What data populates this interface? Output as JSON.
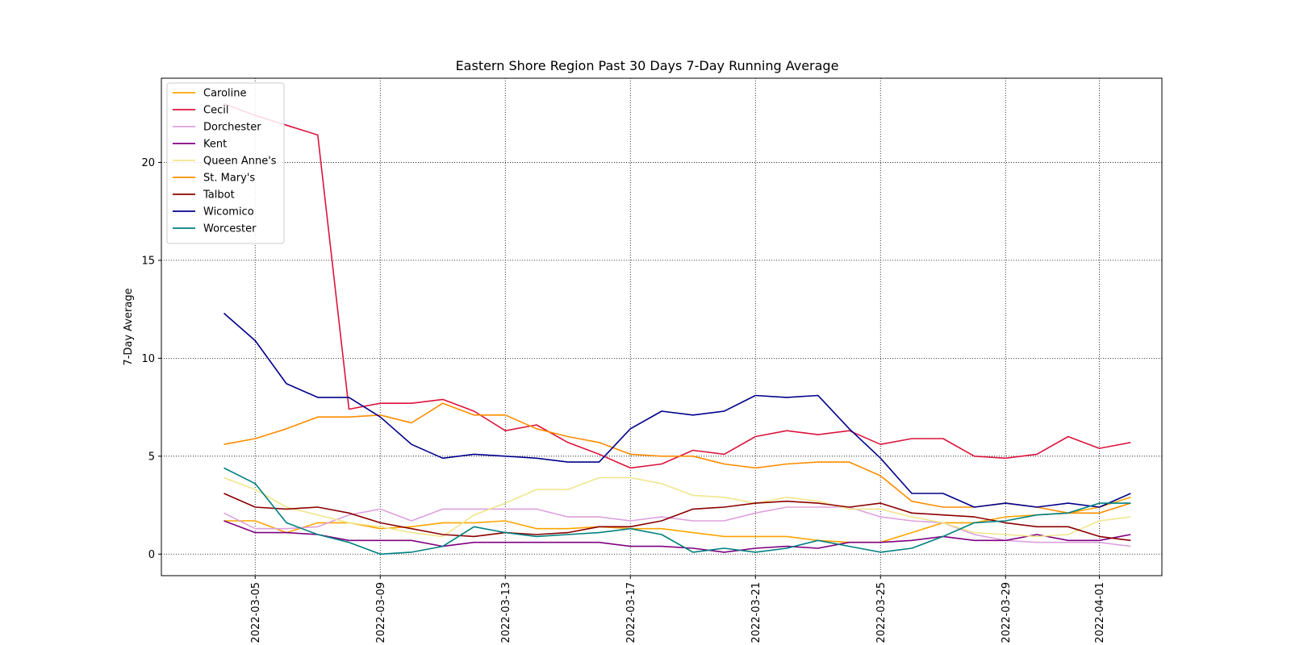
{
  "chart_data": {
    "type": "line",
    "title": "Eastern Shore Region Past 30 Days 7-Day Running Average",
    "xlabel": "",
    "ylabel": "7-Day Average",
    "xlim": [
      "2022-03-02",
      "2022-04-03"
    ],
    "ylim": [
      -1.1,
      24.3
    ],
    "yticks": [
      0,
      5,
      10,
      15,
      20
    ],
    "xticks": [
      "2022-03-05",
      "2022-03-09",
      "2022-03-13",
      "2022-03-17",
      "2022-03-21",
      "2022-03-25",
      "2022-03-29",
      "2022-04-01"
    ],
    "grid": true,
    "legend_position": "top-left",
    "x": [
      "2022-03-04",
      "2022-03-05",
      "2022-03-06",
      "2022-03-07",
      "2022-03-08",
      "2022-03-09",
      "2022-03-10",
      "2022-03-11",
      "2022-03-12",
      "2022-03-13",
      "2022-03-14",
      "2022-03-15",
      "2022-03-16",
      "2022-03-17",
      "2022-03-18",
      "2022-03-19",
      "2022-03-20",
      "2022-03-21",
      "2022-03-22",
      "2022-03-23",
      "2022-03-24",
      "2022-03-25",
      "2022-03-26",
      "2022-03-27",
      "2022-03-28",
      "2022-03-29",
      "2022-03-30",
      "2022-03-31",
      "2022-04-01",
      "2022-04-02"
    ],
    "series": [
      {
        "name": "Caroline",
        "color": "#ffa500",
        "values": [
          1.7,
          1.7,
          1.1,
          1.6,
          1.6,
          1.3,
          1.4,
          1.6,
          1.6,
          1.7,
          1.3,
          1.3,
          1.4,
          1.3,
          1.3,
          1.1,
          0.9,
          0.9,
          0.9,
          0.7,
          0.6,
          0.6,
          1.1,
          1.6,
          1.6,
          1.9,
          2.0,
          2.1,
          2.4,
          2.9
        ]
      },
      {
        "name": "Cecil",
        "color": "#dc143c",
        "values": [
          23.0,
          22.4,
          21.9,
          21.4,
          7.4,
          7.7,
          7.7,
          7.9,
          7.3,
          6.3,
          6.6,
          5.7,
          5.1,
          4.4,
          4.6,
          5.3,
          5.1,
          6.0,
          6.3,
          6.1,
          6.3,
          5.6,
          5.9,
          5.9,
          5.0,
          4.9,
          5.1,
          6.0,
          5.4,
          5.7
        ]
      },
      {
        "name": "Dorchester",
        "color": "#dda0dd",
        "values": [
          2.1,
          1.3,
          1.3,
          1.4,
          2.0,
          2.3,
          1.7,
          2.3,
          2.3,
          2.3,
          2.3,
          1.9,
          1.9,
          1.7,
          1.9,
          1.7,
          1.7,
          2.1,
          2.4,
          2.4,
          2.4,
          1.9,
          1.7,
          1.6,
          1.0,
          0.7,
          0.6,
          0.6,
          0.6,
          0.4
        ]
      },
      {
        "name": "Kent",
        "color": "#800080",
        "values": [
          1.7,
          1.1,
          1.1,
          1.0,
          0.7,
          0.7,
          0.7,
          0.4,
          0.6,
          0.6,
          0.6,
          0.6,
          0.6,
          0.4,
          0.4,
          0.3,
          0.1,
          0.3,
          0.4,
          0.3,
          0.6,
          0.6,
          0.7,
          0.9,
          0.7,
          0.7,
          1.0,
          0.7,
          0.7,
          1.0
        ]
      },
      {
        "name": "Queen Anne's",
        "color": "#f0e68c",
        "values": [
          3.9,
          3.3,
          2.4,
          2.0,
          1.6,
          1.4,
          1.1,
          0.9,
          2.0,
          2.6,
          3.3,
          3.3,
          3.9,
          3.9,
          3.6,
          3.0,
          2.9,
          2.6,
          2.9,
          2.7,
          2.3,
          2.3,
          1.9,
          1.6,
          1.1,
          1.0,
          0.9,
          1.0,
          1.7,
          1.9
        ]
      },
      {
        "name": "St. Mary's",
        "color": "#ff8c00",
        "values": [
          5.6,
          5.9,
          6.4,
          7.0,
          7.0,
          7.1,
          6.7,
          7.7,
          7.1,
          7.1,
          6.4,
          6.0,
          5.7,
          5.1,
          5.0,
          5.0,
          4.6,
          4.4,
          4.6,
          4.7,
          4.7,
          4.0,
          2.7,
          2.4,
          2.4,
          2.6,
          2.4,
          2.1,
          2.1,
          2.6
        ]
      },
      {
        "name": "Talbot",
        "color": "#8b0000",
        "values": [
          3.1,
          2.4,
          2.3,
          2.4,
          2.1,
          1.6,
          1.3,
          1.0,
          0.9,
          1.1,
          1.0,
          1.1,
          1.4,
          1.4,
          1.7,
          2.3,
          2.4,
          2.6,
          2.7,
          2.6,
          2.4,
          2.6,
          2.1,
          2.0,
          1.9,
          1.6,
          1.4,
          1.4,
          0.9,
          0.7
        ]
      },
      {
        "name": "Wicomico",
        "color": "#00008b",
        "values": [
          12.3,
          10.9,
          8.7,
          8.0,
          8.0,
          7.0,
          5.6,
          4.9,
          5.1,
          5.0,
          4.9,
          4.7,
          4.7,
          6.4,
          7.3,
          7.1,
          7.3,
          8.1,
          8.0,
          8.1,
          6.4,
          4.9,
          3.1,
          3.1,
          2.4,
          2.6,
          2.4,
          2.6,
          2.4,
          3.1
        ]
      },
      {
        "name": "Worcester",
        "color": "#008080",
        "values": [
          4.4,
          3.6,
          1.6,
          1.0,
          0.6,
          0.0,
          0.1,
          0.4,
          1.4,
          1.1,
          0.9,
          1.0,
          1.1,
          1.3,
          1.0,
          0.1,
          0.3,
          0.1,
          0.3,
          0.7,
          0.4,
          0.1,
          0.3,
          0.9,
          1.6,
          1.7,
          2.0,
          2.1,
          2.6,
          2.6
        ]
      }
    ]
  }
}
